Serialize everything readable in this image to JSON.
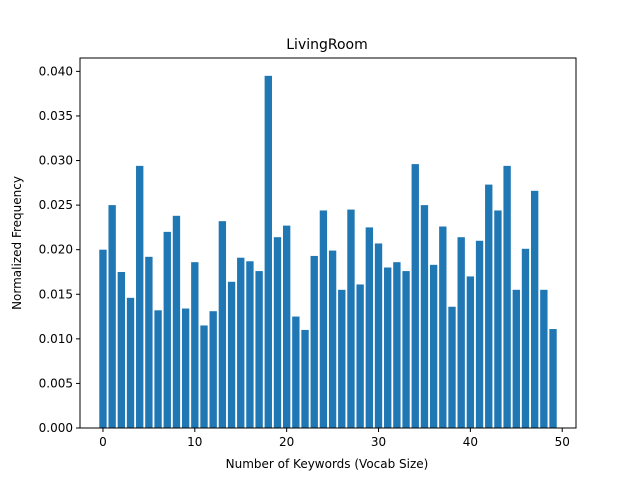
{
  "chart_data": {
    "type": "bar",
    "title": "LivingRoom",
    "xlabel": "Number of Keywords (Vocab Size)",
    "ylabel": "Normalized Frequency",
    "xlim": [
      -2.5,
      51.5
    ],
    "ylim": [
      0,
      0.0415
    ],
    "x_ticks": [
      0,
      10,
      20,
      30,
      40,
      50
    ],
    "x_tick_labels": [
      "0",
      "10",
      "20",
      "30",
      "40",
      "50"
    ],
    "y_ticks": [
      0,
      0.005,
      0.01,
      0.015,
      0.02,
      0.025,
      0.03,
      0.035,
      0.04
    ],
    "y_tick_labels": [
      "0.000",
      "0.005",
      "0.010",
      "0.015",
      "0.020",
      "0.025",
      "0.030",
      "0.035",
      "0.040"
    ],
    "grid": false,
    "bar_color": "#1f77b4",
    "categories": [
      0,
      1,
      2,
      3,
      4,
      5,
      6,
      7,
      8,
      9,
      10,
      11,
      12,
      13,
      14,
      15,
      16,
      17,
      18,
      19,
      20,
      21,
      22,
      23,
      24,
      25,
      26,
      27,
      28,
      29,
      30,
      31,
      32,
      33,
      34,
      35,
      36,
      37,
      38,
      39,
      40,
      41,
      42,
      43,
      44,
      45,
      46,
      47,
      48,
      49
    ],
    "values": [
      0.02,
      0.025,
      0.0175,
      0.0146,
      0.0294,
      0.0192,
      0.0132,
      0.022,
      0.0238,
      0.0134,
      0.0186,
      0.0115,
      0.0131,
      0.0232,
      0.0164,
      0.0191,
      0.0187,
      0.0176,
      0.0395,
      0.0214,
      0.0227,
      0.0125,
      0.011,
      0.0193,
      0.0244,
      0.0199,
      0.0155,
      0.0245,
      0.0161,
      0.0225,
      0.0207,
      0.018,
      0.0186,
      0.0176,
      0.0296,
      0.025,
      0.0183,
      0.0226,
      0.0136,
      0.0214,
      0.017,
      0.021,
      0.0273,
      0.0244,
      0.0294,
      0.0155,
      0.0201,
      0.0266,
      0.0155,
      0.0111
    ]
  }
}
